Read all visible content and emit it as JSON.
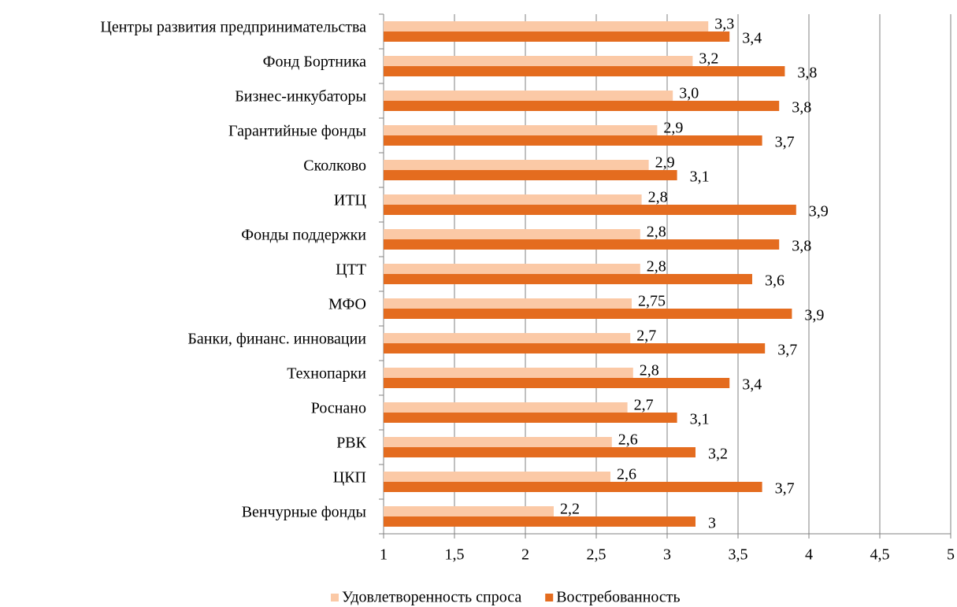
{
  "chart_data": {
    "type": "bar",
    "orientation": "horizontal",
    "categories": [
      "Центры развития предпринимательства",
      "Фонд Бортника",
      "Бизнес-инкубаторы",
      "Гарантийные фонды",
      "Сколково",
      "ИТЦ",
      "Фонды поддержки",
      "ЦТТ",
      "МФО",
      "Банки, финанс. инновации",
      "Технопарки",
      "Роснано",
      "РВК",
      "ЦКП",
      "Венчурные фонды"
    ],
    "series": [
      {
        "name": "Удовлетворенность спроса",
        "color": "#fbc9a6",
        "values": [
          3.29,
          3.18,
          3.04,
          2.93,
          2.87,
          2.82,
          2.81,
          2.81,
          2.75,
          2.74,
          2.76,
          2.72,
          2.61,
          2.6,
          2.2
        ],
        "value_labels": [
          "3,3",
          "3,2",
          "3,0",
          "2,9",
          "2,9",
          "2,8",
          "2,8",
          "2,8",
          "2,75",
          "2,7",
          "2,8",
          "2,7",
          "2,6",
          "2,6",
          "2,2"
        ]
      },
      {
        "name": "Востребованность",
        "color": "#e46c1f",
        "values": [
          3.44,
          3.83,
          3.79,
          3.67,
          3.07,
          3.91,
          3.79,
          3.6,
          3.88,
          3.69,
          3.44,
          3.07,
          3.2,
          3.67,
          3.2
        ],
        "value_labels": [
          "3,4",
          "3,8",
          "3,8",
          "3,7",
          "3,1",
          "3,9",
          "3,8",
          "3,6",
          "3,9",
          "3,7",
          "3,4",
          "3,1",
          "3,2",
          "3,7",
          "3"
        ]
      }
    ],
    "xlim": [
      1,
      5
    ],
    "xticks": [
      1,
      {
        "value": 1.5,
        "label": "1,5"
      },
      2,
      {
        "value": 2.5,
        "label": "2,5"
      },
      3,
      {
        "value": 3.5,
        "label": "3,5"
      },
      4,
      {
        "value": 4.5,
        "label": "4,5"
      },
      5
    ],
    "grid": true,
    "legend": "bottom"
  }
}
